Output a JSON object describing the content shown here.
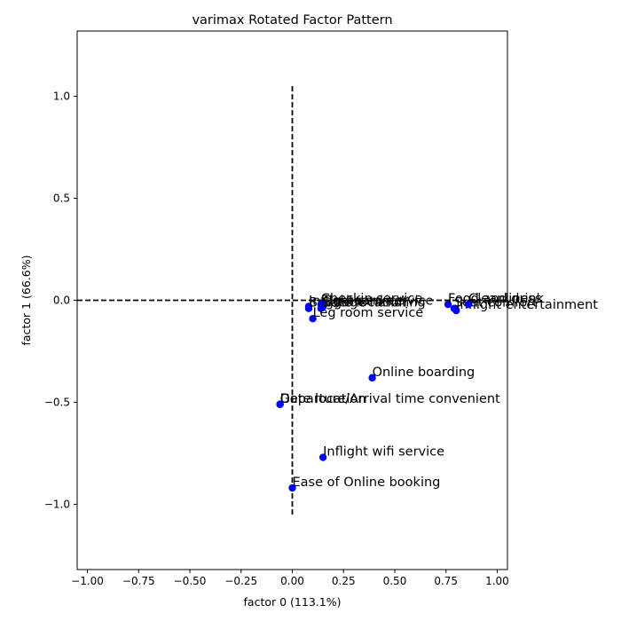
{
  "chart_data": {
    "type": "scatter",
    "title": "varimax Rotated Factor Pattern",
    "xlabel": "factor 0 (113.1%)",
    "ylabel": "factor 1 (66.6%)",
    "xlim": [
      -1.05,
      1.05
    ],
    "ylim": [
      -1.32,
      1.32
    ],
    "xticks": [
      -1.0,
      -0.75,
      -0.5,
      -0.25,
      0.0,
      0.25,
      0.5,
      0.75,
      1.0
    ],
    "xtick_labels": [
      "−1.00",
      "−0.75",
      "−0.50",
      "−0.25",
      "0.00",
      "0.25",
      "0.50",
      "0.75",
      "1.00"
    ],
    "yticks": [
      -1.0,
      -0.5,
      0.0,
      0.5,
      1.0
    ],
    "ytick_labels": [
      "−1.0",
      "−0.5",
      "0.0",
      "0.5",
      "1.0"
    ],
    "marker_color": "#0000ff",
    "reference_lines": {
      "vertical_x": 0.0,
      "vertical_ylim": [
        -1.05,
        1.05
      ],
      "horizontal_y": 0.0,
      "color": "#000000",
      "style": "dashed"
    },
    "points": [
      {
        "label": "Inflight service",
        "x": 0.08,
        "y": -0.03
      },
      {
        "label": "Baggage handling",
        "x": 0.08,
        "y": -0.04
      },
      {
        "label": "Checkin service",
        "x": 0.14,
        "y": -0.02
      },
      {
        "label": "On-board service",
        "x": 0.15,
        "y": -0.03
      },
      {
        "label": "Gate location",
        "x": 0.14,
        "y": -0.04
      },
      {
        "label": "Leg room service",
        "x": 0.1,
        "y": -0.09
      },
      {
        "label": "Food and drink",
        "x": 0.76,
        "y": -0.02
      },
      {
        "label": "Seat comfort",
        "x": 0.79,
        "y": -0.04
      },
      {
        "label": "Inflight entertainment",
        "x": 0.8,
        "y": -0.05
      },
      {
        "label": "Cleanliness",
        "x": 0.86,
        "y": -0.02
      },
      {
        "label": "Online boarding",
        "x": 0.39,
        "y": -0.38
      },
      {
        "label": "Departure/Arrival time convenient",
        "x": -0.06,
        "y": -0.51
      },
      {
        "label": "Gate location",
        "x": -0.06,
        "y": -0.51
      },
      {
        "label": "Inflight wifi service",
        "x": 0.15,
        "y": -0.77
      },
      {
        "label": "Ease of Online booking",
        "x": 0.0,
        "y": -0.92
      }
    ]
  }
}
